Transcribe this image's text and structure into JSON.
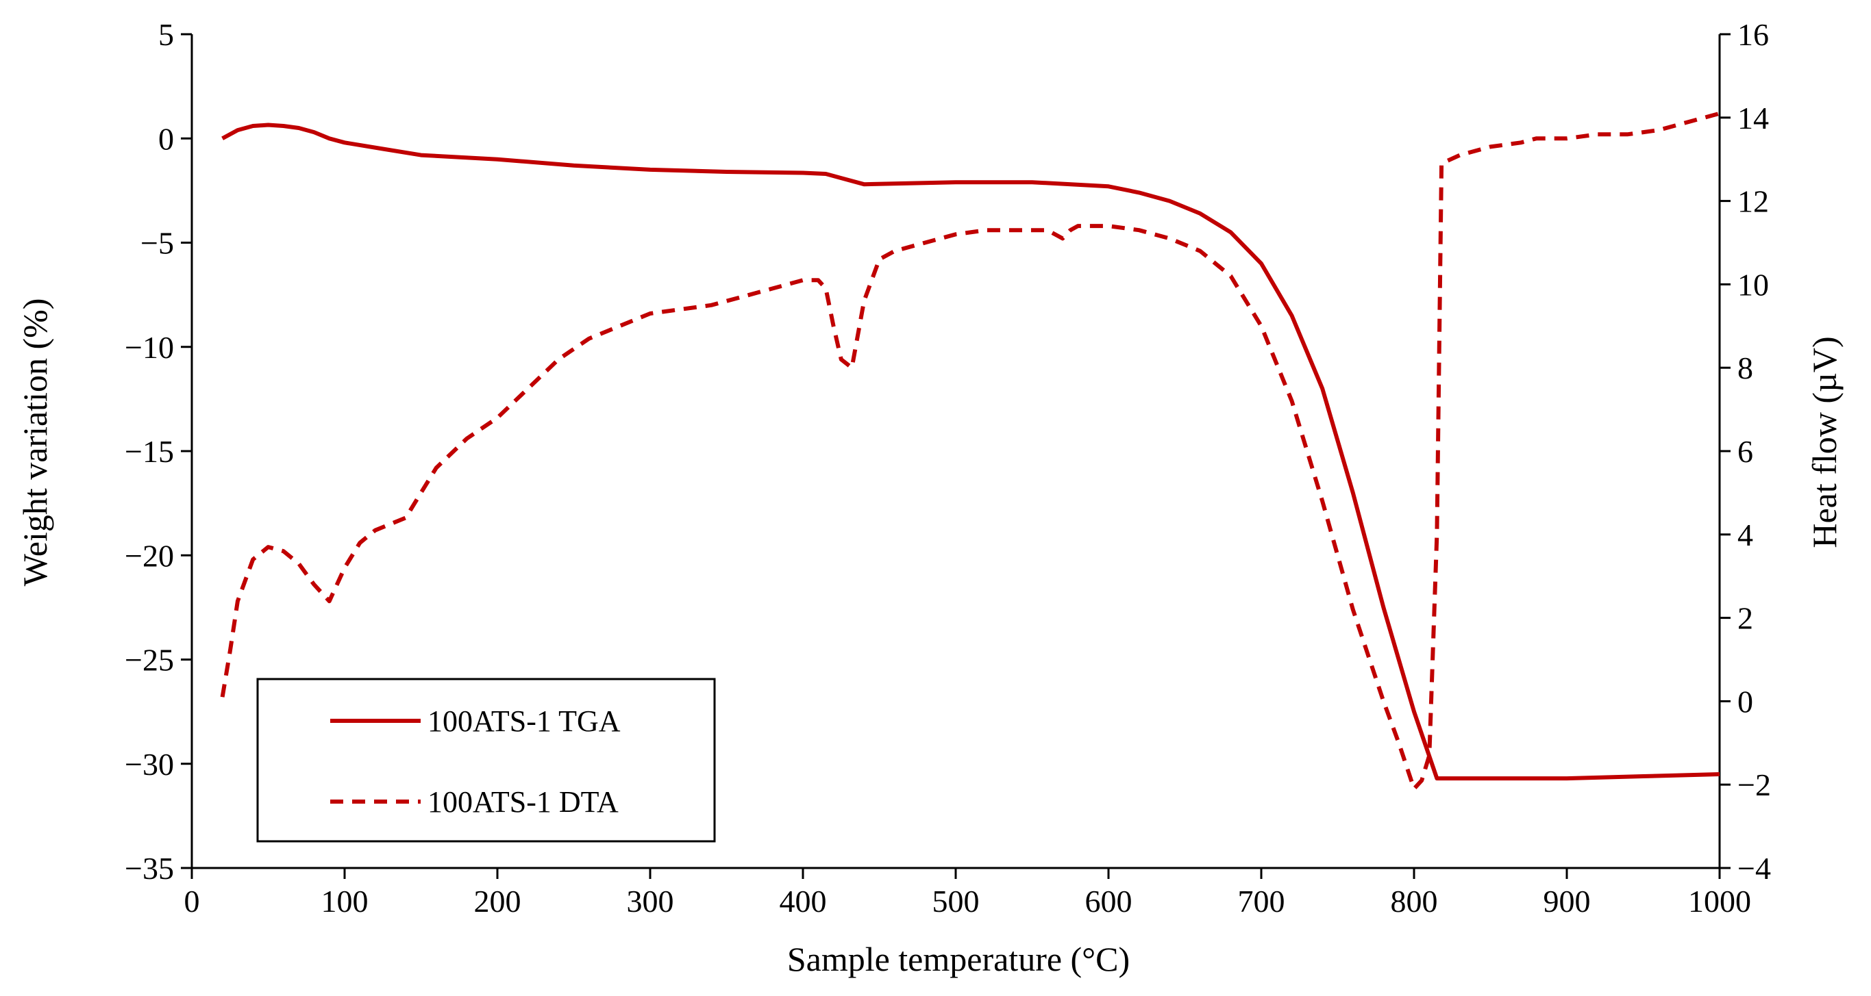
{
  "chart_data": {
    "type": "line",
    "title": "",
    "xlabel": "Sample temperature (°C)",
    "ylabel_left": "Weight variation (%)",
    "ylabel_right": "Heat flow (µV)",
    "xlim": [
      0,
      1000
    ],
    "ylim_left": [
      -35,
      5
    ],
    "ylim_right": [
      -4,
      16
    ],
    "x_ticks": [
      0,
      100,
      200,
      300,
      400,
      500,
      600,
      700,
      800,
      900,
      1000
    ],
    "x_tick_labels": [
      "0",
      "100",
      "200",
      "300",
      "400",
      "500",
      "600",
      "700",
      "800",
      "900",
      "1000"
    ],
    "y_left_ticks": [
      5,
      0,
      -5,
      -10,
      -15,
      -20,
      -25,
      -30,
      -35
    ],
    "y_left_tick_labels": [
      "5",
      "0",
      "−5",
      "−10",
      "−15",
      "−20",
      "−25",
      "−30",
      "−35"
    ],
    "y_right_ticks": [
      16,
      14,
      12,
      10,
      8,
      6,
      4,
      2,
      0,
      -2,
      -4
    ],
    "y_right_tick_labels": [
      "16",
      "14",
      "12",
      "10",
      "8",
      "6",
      "4",
      "2",
      "0",
      "−2",
      "−4"
    ],
    "grid": false,
    "legend_position": "bottom-left",
    "color": "#c00000",
    "series": [
      {
        "name": "100ATS-1 TGA",
        "axis": "left",
        "style": "solid",
        "x": [
          20,
          30,
          40,
          50,
          60,
          70,
          80,
          90,
          100,
          125,
          150,
          200,
          250,
          300,
          350,
          400,
          415,
          425,
          440,
          500,
          550,
          600,
          620,
          640,
          660,
          680,
          700,
          720,
          740,
          760,
          780,
          800,
          815,
          850,
          900,
          950,
          1000
        ],
        "y": [
          0.0,
          0.4,
          0.6,
          0.65,
          0.6,
          0.5,
          0.3,
          0.0,
          -0.2,
          -0.5,
          -0.8,
          -1.0,
          -1.3,
          -1.5,
          -1.6,
          -1.65,
          -1.7,
          -1.9,
          -2.2,
          -2.1,
          -2.1,
          -2.3,
          -2.6,
          -3.0,
          -3.6,
          -4.5,
          -6.0,
          -8.5,
          -12.0,
          -17.0,
          -22.5,
          -27.5,
          -30.7,
          -30.7,
          -30.7,
          -30.6,
          -30.5
        ]
      },
      {
        "name": "100ATS-1 DTA",
        "axis": "right",
        "style": "dashed",
        "x": [
          20,
          25,
          30,
          40,
          50,
          60,
          70,
          80,
          90,
          100,
          110,
          120,
          140,
          150,
          160,
          180,
          200,
          220,
          240,
          260,
          280,
          300,
          320,
          340,
          360,
          380,
          400,
          410,
          415,
          420,
          425,
          432,
          440,
          450,
          460,
          480,
          500,
          520,
          540,
          560,
          570,
          575,
          580,
          600,
          620,
          640,
          660,
          680,
          700,
          720,
          740,
          760,
          780,
          790,
          800,
          805,
          810,
          815,
          818,
          830,
          850,
          870,
          880,
          900,
          920,
          940,
          960,
          980,
          1000
        ],
        "y": [
          0.1,
          1.2,
          2.4,
          3.4,
          3.7,
          3.6,
          3.3,
          2.8,
          2.4,
          3.2,
          3.8,
          4.1,
          4.4,
          5.0,
          5.6,
          6.3,
          6.8,
          7.5,
          8.2,
          8.7,
          9.0,
          9.3,
          9.4,
          9.5,
          9.7,
          9.9,
          10.1,
          10.1,
          9.9,
          9.0,
          8.2,
          8.0,
          9.6,
          10.6,
          10.8,
          11.0,
          11.2,
          11.3,
          11.3,
          11.3,
          11.1,
          11.3,
          11.4,
          11.4,
          11.3,
          11.1,
          10.8,
          10.2,
          9.0,
          7.2,
          4.8,
          2.2,
          0.0,
          -1.0,
          -2.1,
          -1.9,
          -1.3,
          4.0,
          12.9,
          13.1,
          13.3,
          13.4,
          13.5,
          13.5,
          13.6,
          13.6,
          13.7,
          13.9,
          14.1
        ]
      }
    ]
  }
}
